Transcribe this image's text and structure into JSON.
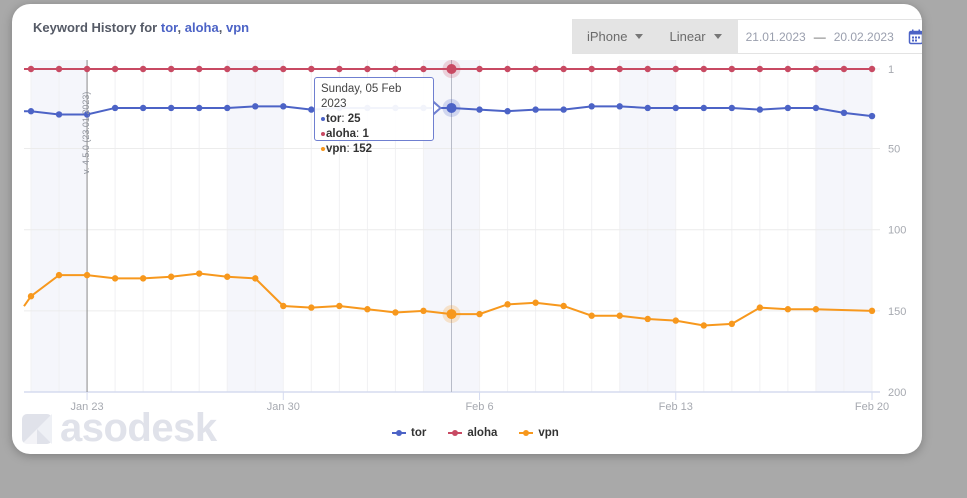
{
  "header": {
    "title_prefix": "Keyword History for",
    "keywords": [
      "tor",
      "aloha",
      "vpn"
    ],
    "sep": ","
  },
  "controls": {
    "device": "iPhone",
    "scale": "Linear",
    "date_from": "21.01.2023",
    "date_sep": "—",
    "date_to": "20.02.2023"
  },
  "tooltip": {
    "date": "Sunday, 05 Feb 2023",
    "rows": [
      {
        "name": "tor",
        "value": "25"
      },
      {
        "name": "aloha",
        "value": "1"
      },
      {
        "name": "vpn",
        "value": "152"
      }
    ]
  },
  "annotation": {
    "version_label": "v. 4.5.0 (23.01.2023)"
  },
  "watermark": "asodesk",
  "colors": {
    "tor": "#4c63c6",
    "aloha": "#c84a63",
    "vpn": "#f7981d",
    "weekend_band": "#f5f6fb",
    "grid": "#ececec"
  },
  "chart_data": {
    "type": "line",
    "title": "Keyword History for tor, aloha, vpn",
    "xlabel": "",
    "ylabel": "",
    "y_inverted": true,
    "ylim": [
      1,
      200
    ],
    "yticks": [
      "1",
      "50",
      "100",
      "150",
      "200"
    ],
    "xtick_labels": [
      "Jan 23",
      "Jan 30",
      "Feb 6",
      "Feb 13",
      "Feb 20"
    ],
    "grid": true,
    "legend_position": "bottom",
    "x": [
      "2023-01-21",
      "2023-01-22",
      "2023-01-23",
      "2023-01-24",
      "2023-01-25",
      "2023-01-26",
      "2023-01-27",
      "2023-01-28",
      "2023-01-29",
      "2023-01-30",
      "2023-01-31",
      "2023-02-01",
      "2023-02-02",
      "2023-02-03",
      "2023-02-04",
      "2023-02-05",
      "2023-02-06",
      "2023-02-07",
      "2023-02-08",
      "2023-02-09",
      "2023-02-10",
      "2023-02-11",
      "2023-02-12",
      "2023-02-13",
      "2023-02-14",
      "2023-02-15",
      "2023-02-16",
      "2023-02-17",
      "2023-02-18",
      "2023-02-19",
      "2023-02-20"
    ],
    "series": [
      {
        "name": "tor",
        "values": [
          27,
          29,
          29,
          25,
          25,
          25,
          25,
          25,
          24,
          24,
          26,
          25,
          25,
          25,
          25,
          25,
          26,
          27,
          26,
          26,
          24,
          24,
          25,
          25,
          25,
          25,
          26,
          25,
          25,
          28,
          30
        ]
      },
      {
        "name": "aloha",
        "values": [
          1,
          1,
          1,
          1,
          1,
          1,
          1,
          1,
          1,
          1,
          1,
          1,
          1,
          1,
          1,
          1,
          1,
          1,
          1,
          1,
          1,
          1,
          1,
          1,
          1,
          1,
          1,
          1,
          1,
          1,
          1
        ]
      },
      {
        "name": "vpn",
        "values": [
          141,
          128,
          128,
          130,
          130,
          129,
          127,
          129,
          130,
          147,
          148,
          147,
          149,
          151,
          150,
          152,
          152,
          146,
          145,
          147,
          153,
          153,
          155,
          156,
          159,
          158,
          148,
          149,
          149,
          null,
          150
        ]
      }
    ],
    "highlighted_x": "2023-02-05"
  }
}
